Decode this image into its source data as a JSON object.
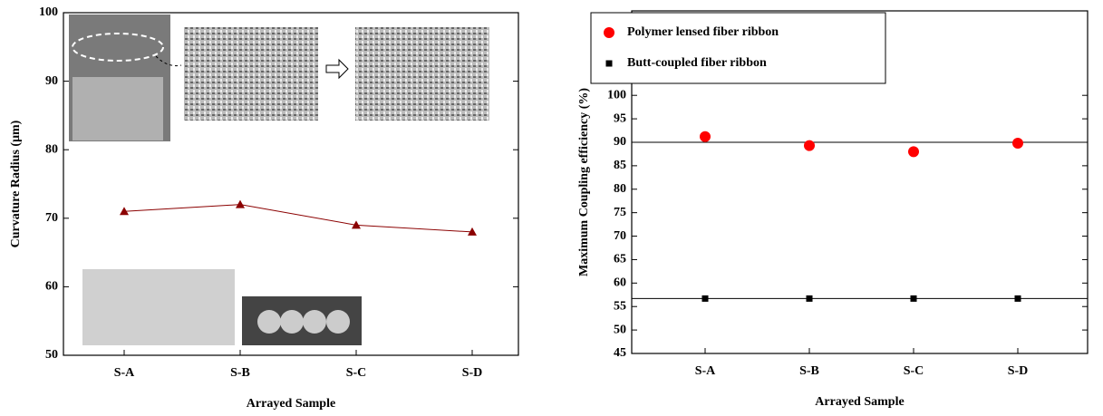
{
  "chart_data": [
    {
      "type": "line",
      "x_label": "Arrayed Sample",
      "y_label": "Curvature Radius (μm)",
      "categories": [
        "S-A",
        "S-B",
        "S-C",
        "S-D"
      ],
      "values": [
        71,
        72,
        69,
        68
      ],
      "color": "#8b0000",
      "marker": "triangle",
      "ylim": [
        50,
        100
      ],
      "yticks": [
        50,
        60,
        70,
        80,
        90,
        100
      ]
    },
    {
      "type": "scatter",
      "x_label": "Arrayed Sample",
      "y_label": "Maximum Coupling efficiency (%)",
      "categories": [
        "S-A",
        "S-B",
        "S-C",
        "S-D"
      ],
      "series": [
        {
          "name": "Polymer lensed fiber ribbon",
          "color": "#ff0000",
          "marker": "circle",
          "values": [
            91.2,
            89.3,
            88.0,
            89.8
          ]
        },
        {
          "name": "Butt-coupled fiber ribbon",
          "color": "#000000",
          "marker": "square",
          "values": [
            56.7,
            56.7,
            56.7,
            56.7
          ]
        }
      ],
      "reference_lines": [
        90,
        56.7
      ],
      "ylim": [
        45,
        118
      ],
      "yticks": [
        45,
        50,
        55,
        60,
        65,
        70,
        75,
        80,
        85,
        90,
        95,
        100
      ],
      "legend": "upper left"
    }
  ]
}
